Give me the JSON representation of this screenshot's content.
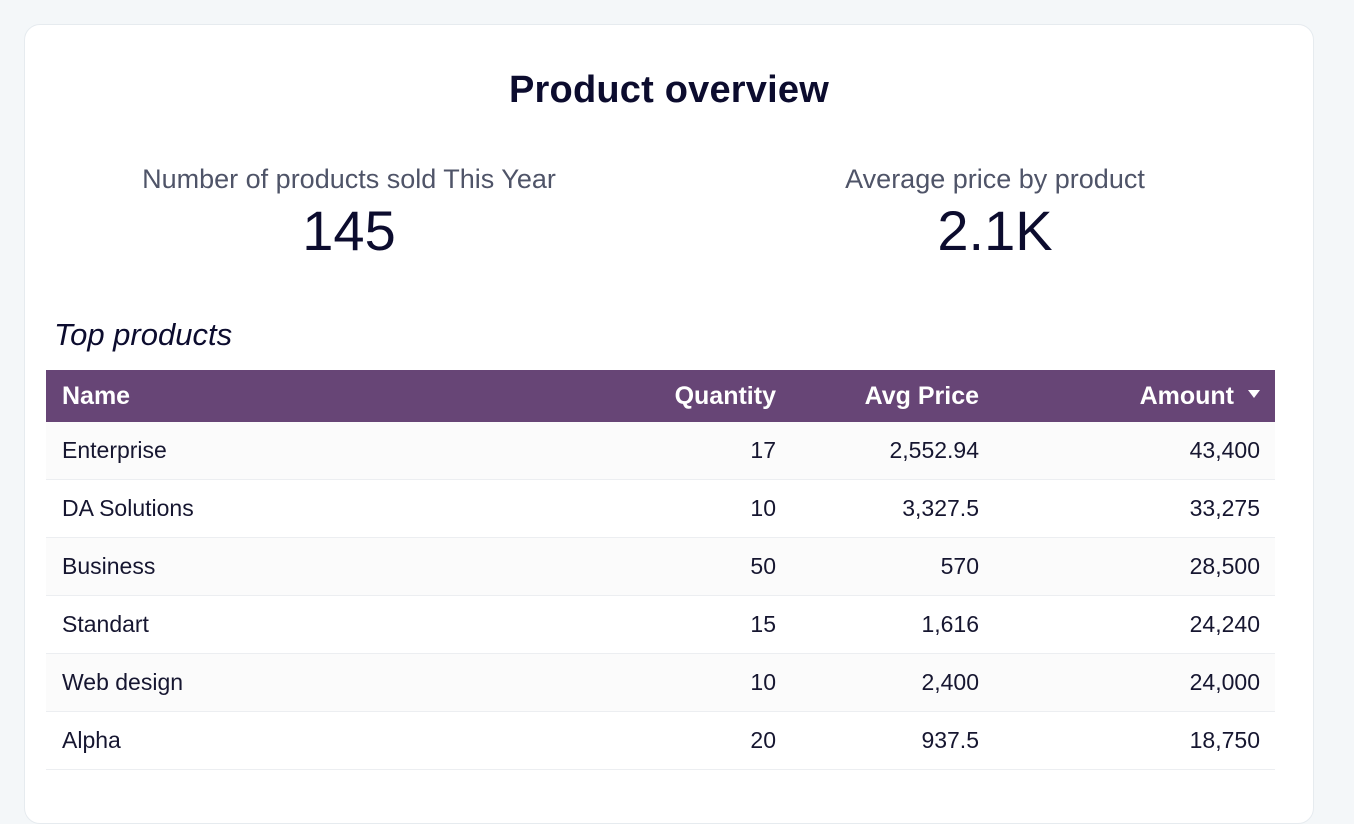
{
  "page": {
    "title": "Product overview"
  },
  "kpis": [
    {
      "label": "Number of products sold This Year",
      "value": "145"
    },
    {
      "label": "Average price by product",
      "value": "2.1K"
    }
  ],
  "table": {
    "title": "Top products",
    "sort_icon": "caret-down-icon",
    "columns": [
      "Name",
      "Quantity",
      "Avg Price",
      "Amount"
    ],
    "rows": [
      [
        "Enterprise",
        "17",
        "2,552.94",
        "43,400"
      ],
      [
        "DA Solutions",
        "10",
        "3,327.5",
        "33,275"
      ],
      [
        "Business",
        "50",
        "570",
        "28,500"
      ],
      [
        "Standart",
        "15",
        "1,616",
        "24,240"
      ],
      [
        "Web design",
        "10",
        "2,400",
        "24,000"
      ],
      [
        "Alpha",
        "20",
        "937.5",
        "18,750"
      ]
    ]
  },
  "colors": {
    "header_bg": "#674576",
    "text": "#0c0c2e",
    "label": "#4f5468"
  }
}
